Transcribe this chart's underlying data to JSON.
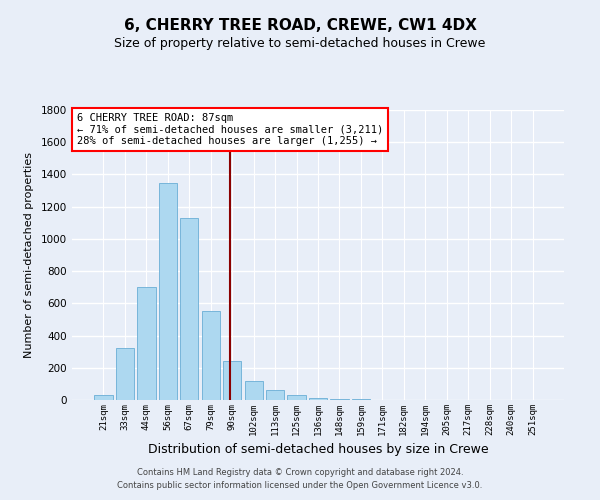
{
  "title": "6, CHERRY TREE ROAD, CREWE, CW1 4DX",
  "subtitle": "Size of property relative to semi-detached houses in Crewe",
  "xlabel": "Distribution of semi-detached houses by size in Crewe",
  "ylabel": "Number of semi-detached properties",
  "categories": [
    "21sqm",
    "33sqm",
    "44sqm",
    "56sqm",
    "67sqm",
    "79sqm",
    "90sqm",
    "102sqm",
    "113sqm",
    "125sqm",
    "136sqm",
    "148sqm",
    "159sqm",
    "171sqm",
    "182sqm",
    "194sqm",
    "205sqm",
    "217sqm",
    "228sqm",
    "240sqm",
    "251sqm"
  ],
  "values": [
    30,
    325,
    700,
    1350,
    1130,
    550,
    240,
    120,
    60,
    30,
    15,
    8,
    4,
    2,
    1,
    0,
    0,
    0,
    0,
    0,
    0
  ],
  "bar_color": "#add8f0",
  "bar_edge_color": "#6aaed6",
  "vline_color": "#8b0000",
  "annotation_text": "6 CHERRY TREE ROAD: 87sqm\n← 71% of semi-detached houses are smaller (3,211)\n28% of semi-detached houses are larger (1,255) →",
  "annotation_box_color": "white",
  "annotation_box_edge": "red",
  "ylim": [
    0,
    1800
  ],
  "yticks": [
    0,
    200,
    400,
    600,
    800,
    1000,
    1200,
    1400,
    1600,
    1800
  ],
  "footer1": "Contains HM Land Registry data © Crown copyright and database right 2024.",
  "footer2": "Contains public sector information licensed under the Open Government Licence v3.0.",
  "bg_color": "#e8eef8",
  "grid_color": "white",
  "title_fontsize": 11,
  "subtitle_fontsize": 9,
  "xlabel_fontsize": 9,
  "ylabel_fontsize": 8,
  "footer_fontsize": 6,
  "annot_fontsize": 7.5
}
